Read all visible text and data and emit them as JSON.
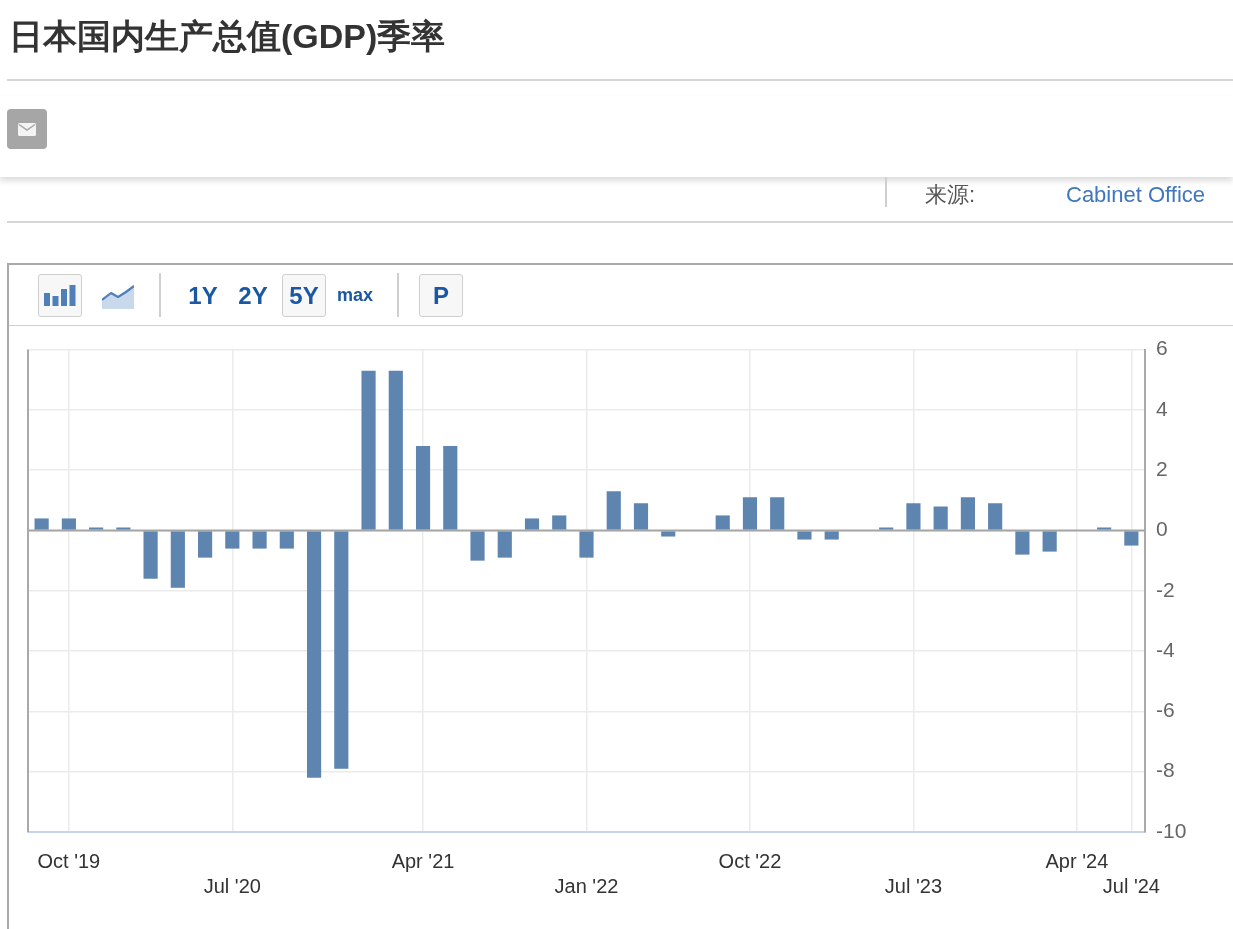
{
  "chart_data": {
    "type": "bar",
    "title": "日本国内生产总值(GDP)季率",
    "annotations": [
      "来源:",
      "Cabinet Office",
      "1Y",
      "2Y",
      "5Y",
      "max",
      "P"
    ],
    "categories": [
      null,
      "Oct '19",
      null,
      null,
      null,
      null,
      null,
      "Jul '20",
      null,
      null,
      null,
      null,
      null,
      null,
      "Apr '21",
      null,
      null,
      null,
      null,
      null,
      "Jan '22",
      null,
      null,
      null,
      null,
      null,
      "Oct '22",
      null,
      null,
      null,
      null,
      null,
      "Jul '23",
      null,
      null,
      null,
      null,
      null,
      "Apr '24",
      null,
      "Jul '24"
    ],
    "values": [
      0.4,
      0.4,
      0.1,
      0.1,
      -1.6,
      -1.9,
      -0.9,
      -0.6,
      -0.6,
      -0.6,
      -8.2,
      -7.9,
      5.3,
      5.3,
      2.8,
      2.8,
      -1.0,
      -0.9,
      0.4,
      0.5,
      -0.9,
      1.3,
      0.9,
      -0.2,
      null,
      0.5,
      1.1,
      1.1,
      -0.3,
      -0.3,
      null,
      0.1,
      0.9,
      0.8,
      1.1,
      0.9,
      -0.8,
      -0.7,
      null,
      0.1,
      -0.5
    ],
    "color": "#5e84b0",
    "ylim": [
      -10,
      6
    ],
    "yticks": [
      -10,
      -8,
      -6,
      -4,
      -2,
      0,
      2,
      4,
      6
    ],
    "grid": true,
    "ref_lines": [
      {
        "axis": "y",
        "value": 0,
        "color": "#a6a6a6"
      }
    ]
  }
}
